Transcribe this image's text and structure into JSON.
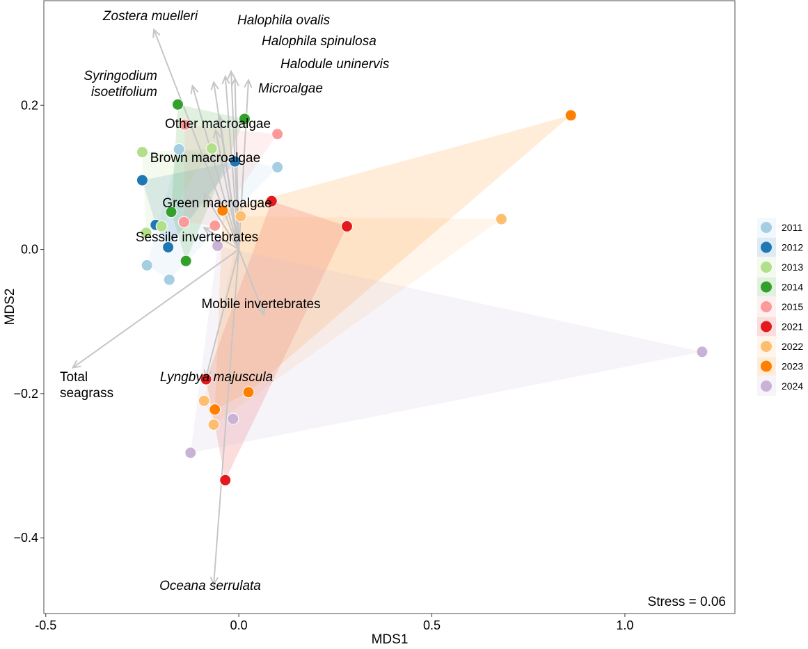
{
  "chart_data": {
    "type": "scatter",
    "subtype": "nMDS ordination with year hulls and biplot vectors",
    "xlabel": "MDS1",
    "ylabel": "MDS2",
    "xlim": [
      -0.505,
      1.285
    ],
    "ylim": [
      -0.505,
      0.345
    ],
    "xticks": [
      -0.5,
      0.0,
      0.5,
      1.0
    ],
    "xtick_labels": [
      "-0.5",
      "0.0",
      "0.5",
      "1.0"
    ],
    "yticks": [
      -0.4,
      -0.2,
      0.0,
      0.2
    ],
    "ytick_labels": [
      "−0.4",
      "−0.2",
      "0.0",
      "0.2"
    ],
    "grid": false,
    "legend_position": "right",
    "stress_label": "Stress = 0.06",
    "series": [
      {
        "name": "2011",
        "color": "#a6cee3",
        "points": [
          [
            -0.155,
            0.139
          ],
          [
            0.1,
            0.114
          ],
          [
            -0.238,
            -0.022
          ],
          [
            -0.18,
            -0.042
          ]
        ]
      },
      {
        "name": "2012",
        "color": "#1f78b4",
        "points": [
          [
            -0.25,
            0.096
          ],
          [
            -0.01,
            0.122
          ],
          [
            -0.215,
            0.034
          ],
          [
            -0.183,
            0.003
          ]
        ]
      },
      {
        "name": "2013",
        "color": "#b2df8a",
        "points": [
          [
            -0.25,
            0.135
          ],
          [
            -0.07,
            0.14
          ],
          [
            -0.24,
            0.023
          ],
          [
            -0.2,
            0.032
          ]
        ]
      },
      {
        "name": "2014",
        "color": "#33a02c",
        "points": [
          [
            -0.158,
            0.201
          ],
          [
            0.015,
            0.181
          ],
          [
            -0.175,
            0.052
          ],
          [
            -0.137,
            -0.016
          ]
        ]
      },
      {
        "name": "2015",
        "color": "#fb9a99",
        "points": [
          [
            -0.14,
            0.173
          ],
          [
            0.1,
            0.16
          ],
          [
            -0.142,
            0.038
          ],
          [
            -0.062,
            0.033
          ]
        ]
      },
      {
        "name": "2021",
        "color": "#e31a1c",
        "points": [
          [
            0.085,
            0.067
          ],
          [
            0.28,
            0.032
          ],
          [
            -0.085,
            -0.18
          ],
          [
            -0.035,
            -0.32
          ]
        ]
      },
      {
        "name": "2022",
        "color": "#fdbf6f",
        "points": [
          [
            0.005,
            0.046
          ],
          [
            0.68,
            0.042
          ],
          [
            -0.09,
            -0.21
          ],
          [
            -0.065,
            -0.243
          ]
        ]
      },
      {
        "name": "2023",
        "color": "#ff7f00",
        "points": [
          [
            0.86,
            0.186
          ],
          [
            -0.042,
            0.054
          ],
          [
            0.025,
            -0.198
          ],
          [
            -0.062,
            -0.222
          ]
        ]
      },
      {
        "name": "2024",
        "color": "#cab2d6",
        "points": [
          [
            -0.055,
            0.005
          ],
          [
            1.2,
            -0.142
          ],
          [
            -0.015,
            -0.235
          ],
          [
            -0.125,
            -0.282
          ]
        ]
      }
    ],
    "vectors": [
      {
        "label": "Zostera muelleri",
        "italic": true,
        "end": [
          -0.22,
          0.305
        ]
      },
      {
        "label": "Halophila ovalis",
        "italic": true,
        "end": [
          -0.02,
          0.247
        ]
      },
      {
        "label": "Halophila spinulosa",
        "italic": true,
        "end": [
          -0.035,
          0.24
        ]
      },
      {
        "label": "Halodule uninervis",
        "italic": true,
        "end": [
          -0.01,
          0.237
        ]
      },
      {
        "label": "Syringodium isoetifolium",
        "italic": true,
        "end": [
          -0.12,
          0.227
        ]
      },
      {
        "label": "Microalgae",
        "italic": true,
        "end": [
          0.025,
          0.235
        ]
      },
      {
        "label": "",
        "italic": false,
        "end": [
          -0.065,
          0.232
        ]
      },
      {
        "label": "Other macroalgae",
        "italic": false,
        "end": [
          -0.05,
          0.185
        ]
      },
      {
        "label": "Brown macroalgae",
        "italic": false,
        "end": [
          -0.06,
          0.165
        ]
      },
      {
        "label": "Green macroalgae",
        "italic": false,
        "end": [
          -0.09,
          0.077
        ]
      },
      {
        "label": "Sessile invertebrates",
        "italic": false,
        "end": [
          -0.09,
          0.03
        ]
      },
      {
        "label": "Mobile invertebrates",
        "italic": false,
        "end": [
          0.065,
          -0.09
        ]
      },
      {
        "label": "Total seagrass",
        "italic": false,
        "end": [
          -0.43,
          -0.164
        ]
      },
      {
        "label": "Lyngbya majuscula",
        "italic": true,
        "end": [
          -0.085,
          -0.178
        ]
      },
      {
        "label": "Oceana serrulata",
        "italic": true,
        "end": [
          -0.065,
          -0.465
        ]
      }
    ]
  }
}
